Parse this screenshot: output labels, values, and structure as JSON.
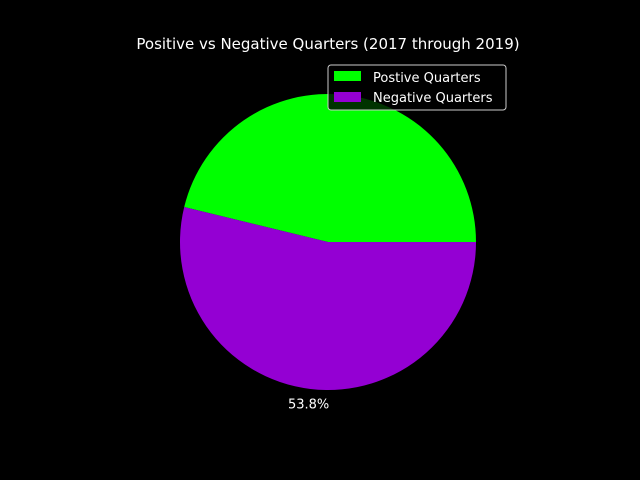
{
  "chart_data": {
    "type": "pie",
    "title": "Positive vs Negative Quarters (2017 through 2019)",
    "categories": [
      "Postive Quarters",
      "Negative Quarters"
    ],
    "values": [
      46.2,
      53.8
    ],
    "colors": [
      "#00ff00",
      "#9400d3"
    ],
    "slice_labels": [
      "",
      "53.8%"
    ],
    "legend_position": "top-right"
  }
}
